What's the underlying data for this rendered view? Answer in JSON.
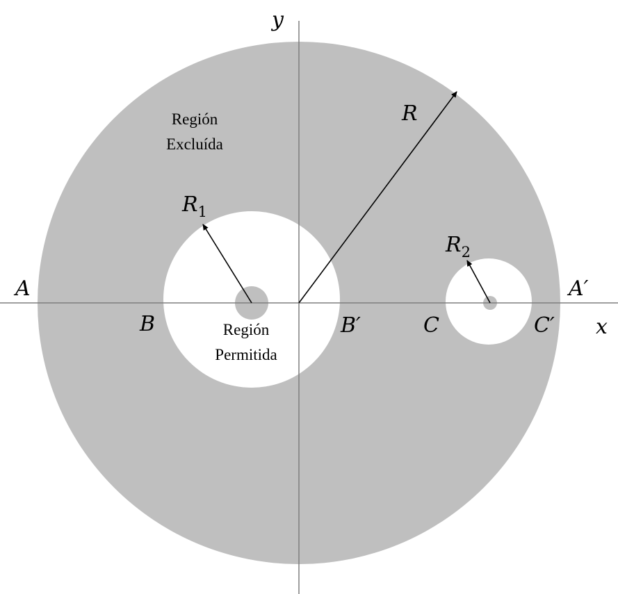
{
  "labels": {
    "y_axis": "y",
    "x_axis": "x",
    "R": "R",
    "R1_main": "R",
    "R1_sub": "1",
    "R2_main": "R",
    "R2_sub": "2",
    "A": "A",
    "A_prime": "A′",
    "B": "B",
    "B_prime": "B′",
    "C": "C",
    "C_prime": "C′"
  },
  "regions": {
    "excluded_line1": "Región",
    "excluded_line2": "Excluída",
    "allowed_line1": "Región",
    "allowed_line2": "Permitida"
  },
  "colors": {
    "excluded_fill": "#bfbfbf",
    "allowed_fill": "#ffffff",
    "axis": "#7f7f7f",
    "arrow": "#000000"
  }
}
